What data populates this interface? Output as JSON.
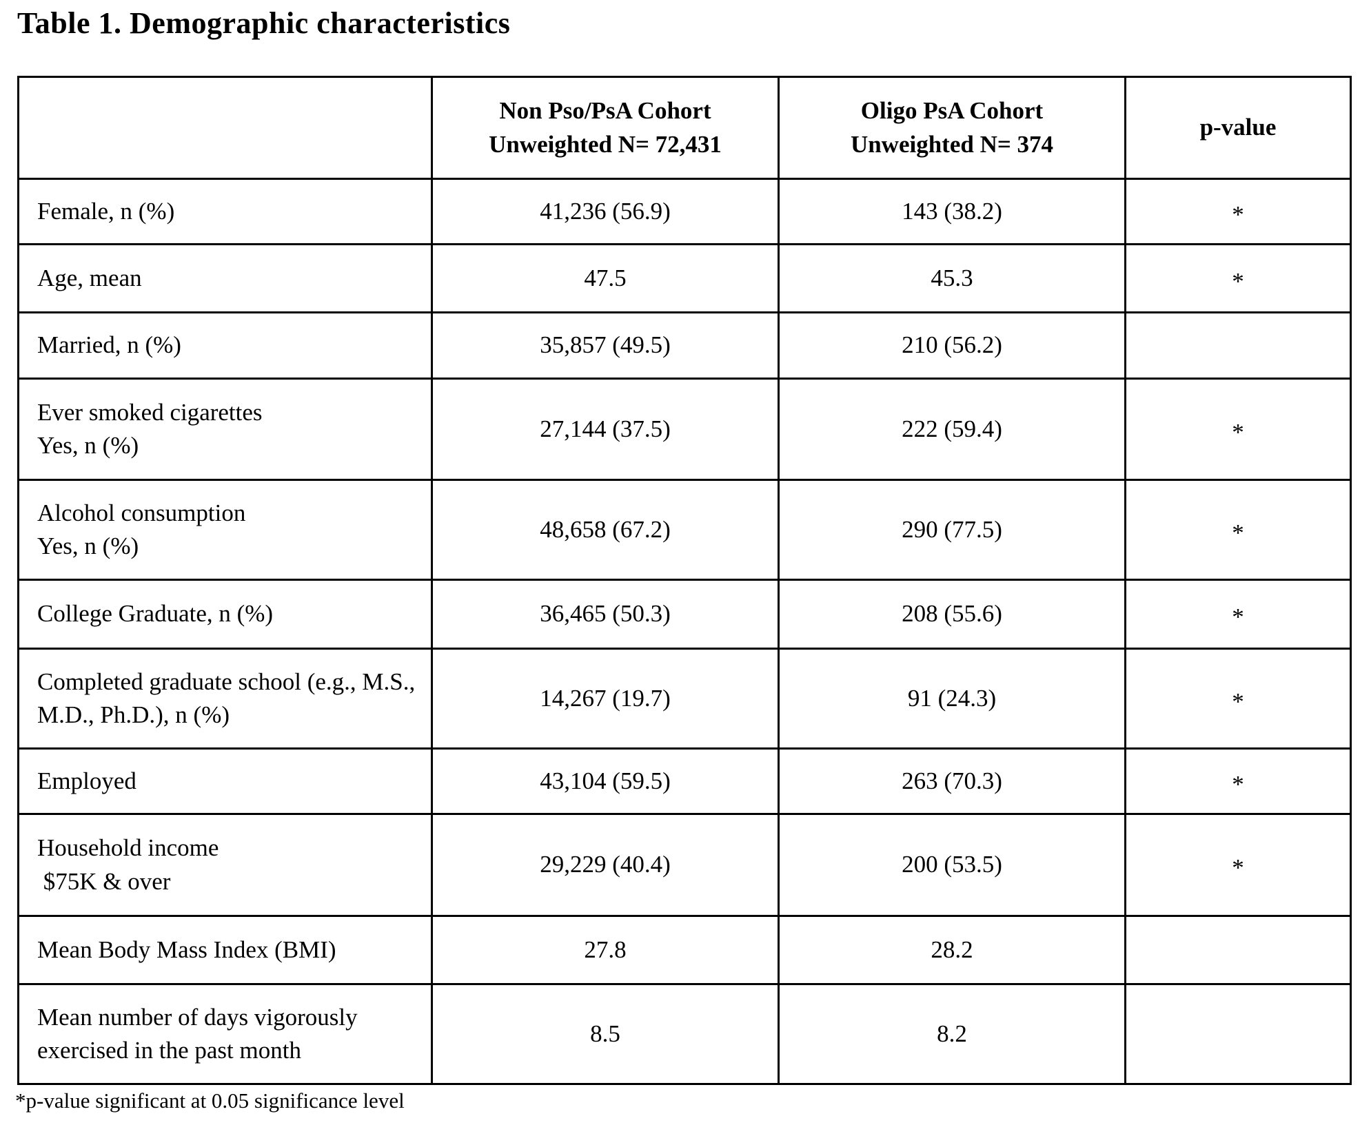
{
  "page_title": "Table 1. Demographic characteristics",
  "table": {
    "header": {
      "col0": "",
      "col1": "Non Pso/PsA Cohort\nUnweighted N= 72,431",
      "col2": "Oligo PsA Cohort\nUnweighted N= 374",
      "col3": "p-value"
    },
    "rows": [
      {
        "label": "Female, n (%)",
        "values": [
          "41,236 (56.9)",
          "143 (38.2)",
          "*"
        ]
      },
      {
        "label": "Age, mean",
        "values": [
          "47.5",
          "45.3",
          "*"
        ]
      },
      {
        "label": "Married, n (%)",
        "values": [
          "35,857 (49.5)",
          "210 (56.2)",
          ""
        ]
      },
      {
        "label": "Ever smoked cigarettes\nYes, n (%)",
        "values": [
          "27,144 (37.5)",
          "222 (59.4)",
          "*"
        ]
      },
      {
        "label": "Alcohol consumption\nYes, n (%)",
        "values": [
          "48,658 (67.2)",
          "290 (77.5)",
          "*"
        ]
      },
      {
        "label": "College Graduate, n (%)",
        "values": [
          "36,465 (50.3)",
          "208 (55.6)",
          "*"
        ]
      },
      {
        "label": "Completed graduate school (e.g., M.S., M.D., Ph.D.), n (%)",
        "values": [
          "14,267 (19.7)",
          "91 (24.3)",
          "*"
        ]
      },
      {
        "label": "Employed",
        "values": [
          "43,104 (59.5)",
          "263 (70.3)",
          "*"
        ]
      },
      {
        "label": "Household income\n $75K & over",
        "values": [
          "29,229 (40.4)",
          "200 (53.5)",
          "*"
        ]
      },
      {
        "label": "Mean Body Mass Index (BMI)",
        "values": [
          "27.8",
          "28.2",
          ""
        ]
      },
      {
        "label": "Mean number of days vigorously exercised in the past month",
        "values": [
          "8.5",
          "8.2",
          ""
        ]
      }
    ]
  },
  "footnote": "*p-value significant at 0.05 significance level"
}
